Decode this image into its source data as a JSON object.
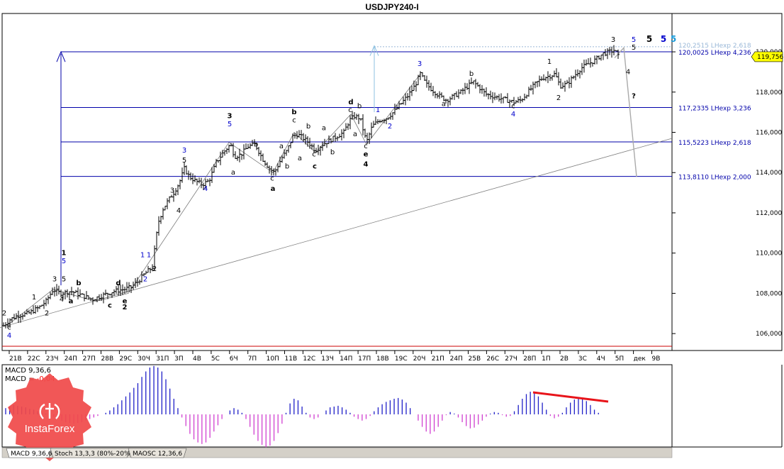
{
  "chart_data": {
    "type": "candlestick",
    "title": "USDJPY240-I",
    "ylim": [
      105.3,
      121.8
    ],
    "y_ticks": [
      "106,000",
      "108,000",
      "110,000",
      "112,000",
      "114,000",
      "116,000",
      "118,000",
      "120,000"
    ],
    "y_tick_values": [
      106,
      108,
      110,
      112,
      114,
      116,
      118,
      120
    ],
    "current_price": {
      "value": 119.756,
      "label": "119,756"
    },
    "x_labels": [
      "21В",
      "22С",
      "23Ч",
      "24П",
      "27П",
      "28В",
      "29С",
      "30Ч",
      "31П",
      "3П",
      "4В",
      "5С",
      "6Ч",
      "7П",
      "10П",
      "11В",
      "12С",
      "13Ч",
      "14П",
      "17П",
      "18В",
      "19С",
      "20Ч",
      "21П",
      "24П",
      "25В",
      "26С",
      "27Ч",
      "28П",
      "1П",
      "2В",
      "3С",
      "4Ч",
      "5П",
      "дек",
      "9В"
    ],
    "price_path": [
      [
        0,
        106.4
      ],
      [
        9,
        106.7
      ],
      [
        20,
        106.9
      ],
      [
        35,
        107.0
      ],
      [
        50,
        107.3
      ],
      [
        60,
        107.6
      ],
      [
        70,
        108.2
      ],
      [
        80,
        108.0
      ],
      [
        95,
        108.1
      ],
      [
        110,
        107.9
      ],
      [
        125,
        107.7
      ],
      [
        140,
        107.9
      ],
      [
        155,
        108.1
      ],
      [
        170,
        108.2
      ],
      [
        180,
        108.3
      ],
      [
        190,
        108.6
      ],
      [
        200,
        109.0
      ],
      [
        210,
        109.3
      ],
      [
        218,
        111.5
      ],
      [
        225,
        112.2
      ],
      [
        232,
        112.6
      ],
      [
        240,
        113.0
      ],
      [
        248,
        113.5
      ],
      [
        255,
        114.2
      ],
      [
        262,
        113.8
      ],
      [
        270,
        113.6
      ],
      [
        280,
        113.4
      ],
      [
        290,
        113.6
      ],
      [
        300,
        114.5
      ],
      [
        310,
        115.0
      ],
      [
        320,
        115.4
      ],
      [
        326,
        114.8
      ],
      [
        335,
        114.9
      ],
      [
        345,
        115.3
      ],
      [
        355,
        115.4
      ],
      [
        365,
        114.7
      ],
      [
        375,
        114.2
      ],
      [
        382,
        114.0
      ],
      [
        392,
        114.7
      ],
      [
        400,
        115.1
      ],
      [
        408,
        115.8
      ],
      [
        415,
        115.9
      ],
      [
        423,
        115.7
      ],
      [
        430,
        115.5
      ],
      [
        440,
        115.1
      ],
      [
        450,
        115.4
      ],
      [
        460,
        115.6
      ],
      [
        470,
        115.8
      ],
      [
        480,
        116.0
      ],
      [
        488,
        116.6
      ],
      [
        495,
        116.8
      ],
      [
        503,
        116.7
      ],
      [
        512,
        115.5
      ],
      [
        520,
        116.3
      ],
      [
        530,
        116.6
      ],
      [
        540,
        116.7
      ],
      [
        550,
        117.0
      ],
      [
        560,
        117.4
      ],
      [
        570,
        117.8
      ],
      [
        580,
        118.3
      ],
      [
        588,
        118.9
      ],
      [
        596,
        118.4
      ],
      [
        605,
        118.1
      ],
      [
        615,
        117.8
      ],
      [
        625,
        117.6
      ],
      [
        635,
        117.8
      ],
      [
        645,
        118.0
      ],
      [
        655,
        118.3
      ],
      [
        663,
        118.5
      ],
      [
        672,
        118.2
      ],
      [
        680,
        117.9
      ],
      [
        690,
        117.8
      ],
      [
        700,
        117.7
      ],
      [
        710,
        117.6
      ],
      [
        720,
        117.5
      ],
      [
        730,
        117.6
      ],
      [
        740,
        118.0
      ],
      [
        750,
        118.4
      ],
      [
        760,
        118.7
      ],
      [
        770,
        118.8
      ],
      [
        778,
        118.9
      ],
      [
        785,
        118.3
      ],
      [
        795,
        118.4
      ],
      [
        805,
        118.8
      ],
      [
        815,
        119.2
      ],
      [
        825,
        119.4
      ],
      [
        835,
        119.6
      ],
      [
        845,
        119.9
      ],
      [
        855,
        120.0
      ],
      [
        862,
        120.1
      ],
      [
        868,
        119.7
      ]
    ],
    "fib_levels": [
      {
        "value": 120.2515,
        "label": "120,2515 LHexp 2,618",
        "muted": true
      },
      {
        "value": 120.0025,
        "label": "120,0025 LHexp 4,236"
      },
      {
        "value": 117.2335,
        "label": "117,2335 LHexp 3,236"
      },
      {
        "value": 115.5223,
        "label": "115,5223 LHexp 2,618"
      },
      {
        "value": 113.811,
        "label": "113,8110 LHexp 2,000"
      }
    ],
    "wave_labels": [
      {
        "t": "2",
        "x": 1,
        "y": 106.9,
        "c": "#000"
      },
      {
        "t": "c",
        "x": 8,
        "y": 106.2,
        "c": "#000"
      },
      {
        "t": "4",
        "x": 8,
        "y": 105.8,
        "c": "#0000cc"
      },
      {
        "t": "1",
        "x": 43,
        "y": 107.7,
        "c": "#000"
      },
      {
        "t": "2",
        "x": 61,
        "y": 106.9,
        "c": "#000"
      },
      {
        "t": "3",
        "x": 72,
        "y": 108.6,
        "c": "#000"
      },
      {
        "t": "4",
        "x": 82,
        "y": 107.6,
        "c": "#000"
      },
      {
        "t": "a",
        "x": 95,
        "y": 107.5,
        "c": "#000",
        "b": true
      },
      {
        "t": "5",
        "x": 85,
        "y": 108.6,
        "c": "#000"
      },
      {
        "t": "1",
        "x": 85,
        "y": 109.9,
        "c": "#000",
        "b": true
      },
      {
        "t": "5",
        "x": 85,
        "y": 109.5,
        "c": "#0000cc"
      },
      {
        "t": "b",
        "x": 106,
        "y": 108.4,
        "c": "#000",
        "b": true
      },
      {
        "t": "c",
        "x": 150,
        "y": 107.3,
        "c": "#000",
        "b": true
      },
      {
        "t": "d",
        "x": 162,
        "y": 108.4,
        "c": "#000",
        "b": true
      },
      {
        "t": "e",
        "x": 171,
        "y": 107.5,
        "c": "#000",
        "b": true
      },
      {
        "t": "2",
        "x": 171,
        "y": 107.2,
        "c": "#000",
        "b": true
      },
      {
        "t": "1",
        "x": 196,
        "y": 109.8,
        "c": "#0000cc"
      },
      {
        "t": "1",
        "x": 205,
        "y": 109.8,
        "c": "#0000cc"
      },
      {
        "t": "2",
        "x": 200,
        "y": 108.6,
        "c": "#0000cc"
      },
      {
        "t": "2",
        "x": 213,
        "y": 109.1,
        "c": "#000"
      },
      {
        "t": "3",
        "x": 238,
        "y": 113.0,
        "c": "#000"
      },
      {
        "t": "4",
        "x": 247,
        "y": 112.0,
        "c": "#000"
      },
      {
        "t": "3",
        "x": 255,
        "y": 115.0,
        "c": "#0000cc"
      },
      {
        "t": "5",
        "x": 255,
        "y": 114.5,
        "c": "#000"
      },
      {
        "t": "4",
        "x": 285,
        "y": 113.1,
        "c": "#0000cc"
      },
      {
        "t": "3",
        "x": 319,
        "y": 116.7,
        "c": "#000",
        "b": true
      },
      {
        "t": "5",
        "x": 319,
        "y": 116.3,
        "c": "#0000cc"
      },
      {
        "t": "a",
        "x": 324,
        "y": 113.9,
        "c": "#000"
      },
      {
        "t": "b",
        "x": 356,
        "y": 115.3,
        "c": "#000"
      },
      {
        "t": "c",
        "x": 379,
        "y": 113.6,
        "c": "#000"
      },
      {
        "t": "a",
        "x": 380,
        "y": 113.1,
        "c": "#000",
        "b": true
      },
      {
        "t": "a",
        "x": 392,
        "y": 115.2,
        "c": "#000"
      },
      {
        "t": "b",
        "x": 400,
        "y": 114.2,
        "c": "#000"
      },
      {
        "t": "b",
        "x": 410,
        "y": 116.9,
        "c": "#000",
        "b": true
      },
      {
        "t": "c",
        "x": 410,
        "y": 116.5,
        "c": "#000"
      },
      {
        "t": "a",
        "x": 418,
        "y": 114.6,
        "c": "#000"
      },
      {
        "t": "b",
        "x": 430,
        "y": 116.2,
        "c": "#000"
      },
      {
        "t": "c",
        "x": 438,
        "y": 114.8,
        "c": "#000"
      },
      {
        "t": "c",
        "x": 439,
        "y": 114.2,
        "c": "#000",
        "b": true
      },
      {
        "t": "a",
        "x": 452,
        "y": 116.1,
        "c": "#000"
      },
      {
        "t": "b",
        "x": 464,
        "y": 114.9,
        "c": "#000"
      },
      {
        "t": "d",
        "x": 490,
        "y": 117.4,
        "c": "#000",
        "b": true
      },
      {
        "t": "c",
        "x": 489,
        "y": 117.0,
        "c": "#000"
      },
      {
        "t": "b",
        "x": 502,
        "y": 117.2,
        "c": "#000"
      },
      {
        "t": "a",
        "x": 496,
        "y": 115.8,
        "c": "#000"
      },
      {
        "t": "1",
        "x": 528,
        "y": 117.0,
        "c": "#0000cc"
      },
      {
        "t": "c",
        "x": 511,
        "y": 115.2,
        "c": "#000"
      },
      {
        "t": "e",
        "x": 511,
        "y": 114.8,
        "c": "#000",
        "b": true
      },
      {
        "t": "4",
        "x": 511,
        "y": 114.3,
        "c": "#000",
        "b": true
      },
      {
        "t": "2",
        "x": 545,
        "y": 116.2,
        "c": "#0000cc"
      },
      {
        "t": "3",
        "x": 587,
        "y": 119.3,
        "c": "#0000cc"
      },
      {
        "t": "a",
        "x": 621,
        "y": 117.3,
        "c": "#000"
      },
      {
        "t": "b",
        "x": 660,
        "y": 118.8,
        "c": "#000"
      },
      {
        "t": "c",
        "x": 719,
        "y": 117.2,
        "c": "#000"
      },
      {
        "t": "4",
        "x": 719,
        "y": 116.8,
        "c": "#0000cc"
      },
      {
        "t": "1",
        "x": 770,
        "y": 119.4,
        "c": "#000"
      },
      {
        "t": "2",
        "x": 783,
        "y": 117.6,
        "c": "#000"
      },
      {
        "t": "3",
        "x": 860,
        "y": 120.5,
        "c": "#000"
      },
      {
        "t": "5",
        "x": 889,
        "y": 120.5,
        "c": "#0000cc"
      },
      {
        "t": "5",
        "x": 889,
        "y": 120.1,
        "c": "#000"
      },
      {
        "t": "4",
        "x": 881,
        "y": 118.9,
        "c": "#000"
      },
      {
        "t": "?",
        "x": 889,
        "y": 117.7,
        "c": "#000",
        "b": true
      },
      {
        "t": "5",
        "x": 911,
        "y": 120.5,
        "c": "#000",
        "b": true,
        "big": true
      },
      {
        "t": "5",
        "x": 931,
        "y": 120.5,
        "c": "#0000cc",
        "b": true,
        "big": true
      },
      {
        "t": "5",
        "x": 945,
        "y": 120.5,
        "c": "#1a9ad8",
        "b": true,
        "big": true
      }
    ],
    "indicators": {
      "macd_label": "MACD 9,36,6",
      "macd_name": "MACD",
      "macd_value": "-0,04",
      "macd_histogram": [
        0.8,
        1.0,
        1.2,
        1.1,
        1.0,
        0.9,
        0.7,
        0.6,
        0.4,
        0.2,
        0.1,
        -0.1,
        -0.3,
        -0.5,
        -0.8,
        -1.0,
        -1.1,
        -1.2,
        -1.1,
        -1.0,
        -0.8,
        -0.6,
        -0.4,
        -0.2,
        0.0,
        0.2,
        0.5,
        0.9,
        1.3,
        1.8,
        2.3,
        2.8,
        3.4,
        4.0,
        4.8,
        5.5,
        6.0,
        6.2,
        6.0,
        5.5,
        4.5,
        3.3,
        2.0,
        0.8,
        -0.4,
        -1.5,
        -2.5,
        -3.2,
        -3.6,
        -3.8,
        -3.6,
        -3.0,
        -2.2,
        -1.4,
        -0.6,
        0.0,
        0.5,
        0.8,
        0.6,
        0.2,
        -0.6,
        -1.6,
        -2.6,
        -3.4,
        -3.9,
        -4.2,
        -4.0,
        -3.4,
        -2.4,
        -1.2,
        0.2,
        1.4,
        2.0,
        1.8,
        1.0,
        0.2,
        -0.4,
        -0.6,
        -0.4,
        0.0,
        0.5,
        0.9,
        1.0,
        1.1,
        0.9,
        0.6,
        0.2,
        -0.3,
        -0.6,
        -0.8,
        -0.6,
        -0.2,
        0.4,
        0.9,
        1.3,
        1.6,
        1.8,
        2.0,
        2.1,
        1.9,
        1.5,
        0.8,
        0.0,
        -0.8,
        -1.6,
        -2.2,
        -2.5,
        -2.2,
        -1.6,
        -0.8,
        -0.1,
        0.3,
        0.1,
        -0.4,
        -1.0,
        -1.5,
        -1.8,
        -1.7,
        -1.3,
        -0.8,
        -0.3,
        0.1,
        0.3,
        0.2,
        -0.1,
        -0.3,
        -0.2,
        0.4,
        1.2,
        2.0,
        2.6,
        2.9,
        2.8,
        2.3,
        1.5,
        0.6,
        -0.2,
        -0.5,
        -0.3,
        0.2,
        0.9,
        1.5,
        1.9,
        2.1,
        2.0,
        1.7,
        1.2,
        0.6,
        0.2
      ],
      "tabs": [
        "MACD 9,36,6",
        "Stoch 13,3,3 (80%-20%)",
        "MAOSC 12,36,6"
      ]
    },
    "watermark": "InstaForex"
  }
}
